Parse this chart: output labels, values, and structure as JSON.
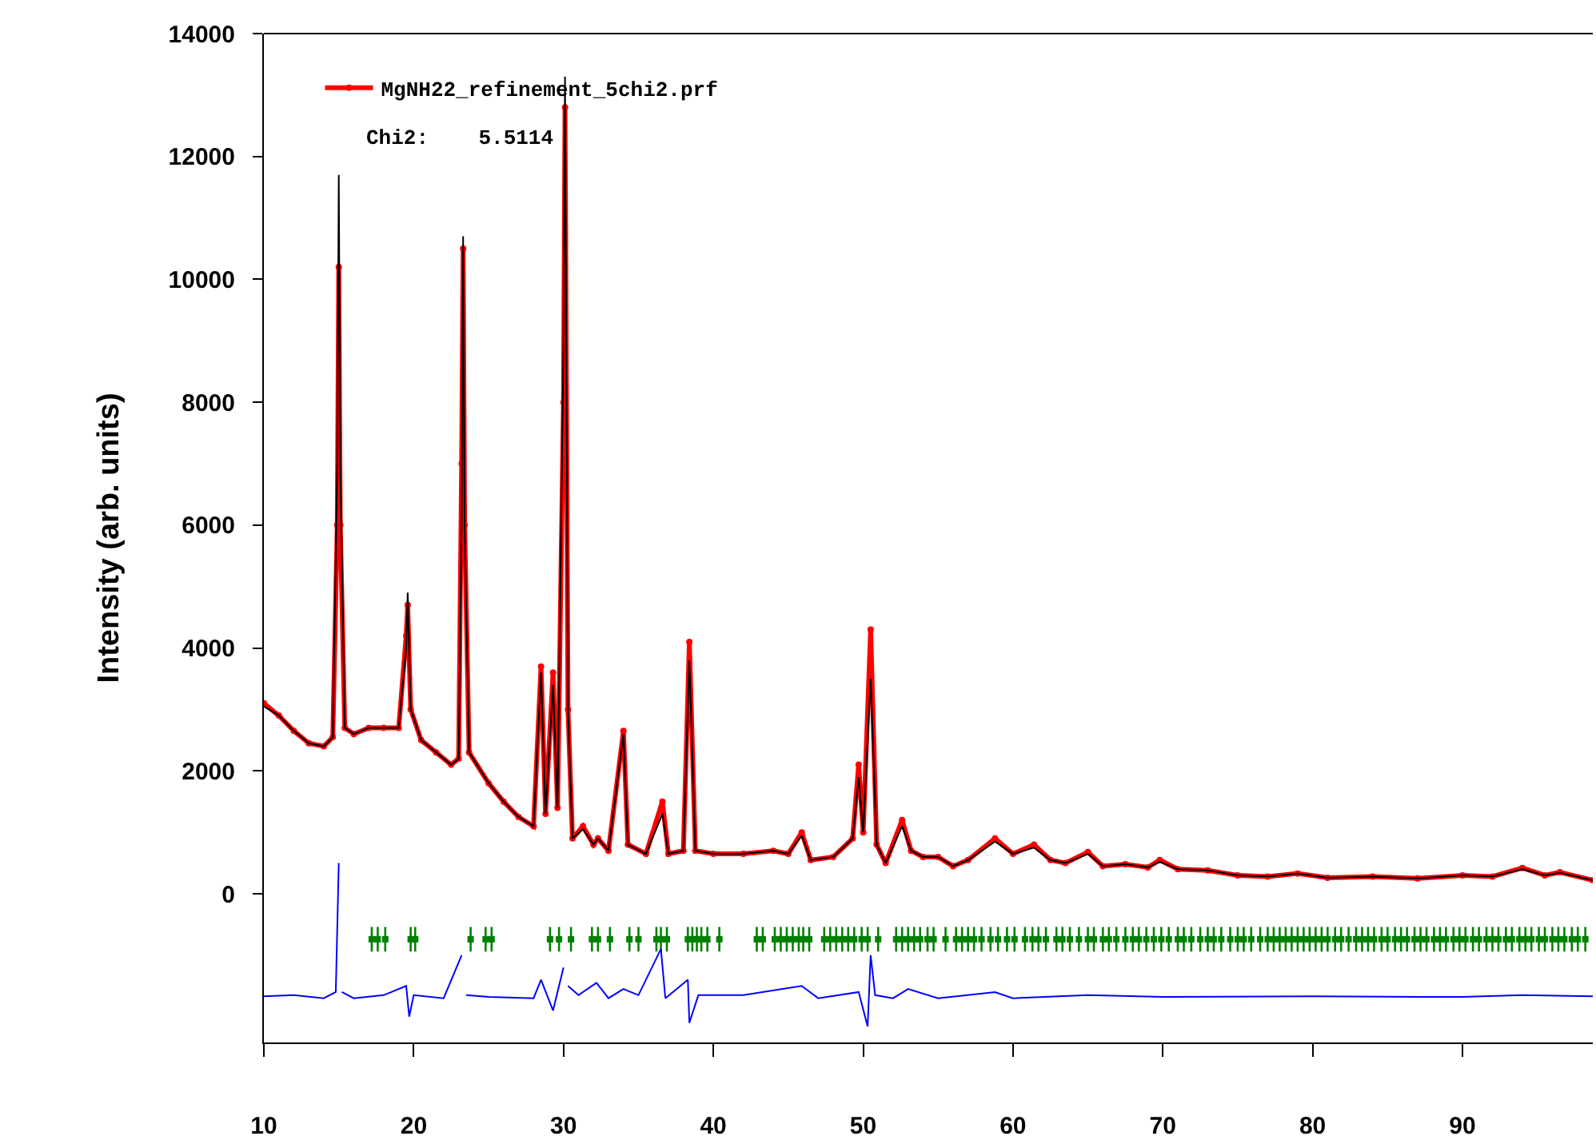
{
  "chart_data": {
    "type": "line",
    "ylabel": "Intensity (arb. units)",
    "xlim": [
      10,
      98.7
    ],
    "xticks": [
      10,
      20,
      30,
      40,
      50,
      60,
      70,
      80,
      90
    ],
    "ylim": [
      -2420,
      14000
    ],
    "yticks": [
      0,
      2000,
      4000,
      6000,
      8000,
      10000,
      12000,
      14000
    ],
    "grid": false,
    "legend": "top left",
    "annotations": [
      "Chi2:    5.5114"
    ],
    "series": [
      {
        "name": "MgNH22_refinement_5chi2.prf",
        "type": "line",
        "color": "#ff0000",
        "marker": "circle",
        "line_style": "solid",
        "x": [
          10,
          11,
          12,
          13,
          14,
          14.6,
          14.9,
          15,
          15.1,
          15.4,
          16,
          17,
          18,
          19,
          19.5,
          19.6,
          19.8,
          20.5,
          21.5,
          22.5,
          23,
          23.2,
          23.3,
          23.4,
          23.7,
          25,
          26,
          27,
          28,
          28.5,
          28.8,
          29.3,
          29.6,
          30,
          30.1,
          30.3,
          30.6,
          31.3,
          32,
          32.3,
          33,
          34,
          34.3,
          35.5,
          36.6,
          37,
          38,
          38.4,
          38.8,
          40,
          42,
          44,
          45,
          45.9,
          46.5,
          48,
          49.3,
          49.7,
          50,
          50.5,
          50.9,
          51.5,
          52.6,
          53.2,
          54,
          55,
          56,
          57,
          58.8,
          60,
          61.4,
          62.5,
          63.5,
          65,
          66,
          67.5,
          69,
          69.8,
          71,
          73,
          75,
          77,
          79,
          81,
          84,
          87,
          90,
          92,
          94,
          95.5,
          96.5,
          98.7
        ],
        "values": [
          3100,
          2900,
          2650,
          2450,
          2400,
          2550,
          6000,
          10200,
          6000,
          2700,
          2600,
          2700,
          2700,
          2700,
          4200,
          4700,
          3000,
          2500,
          2300,
          2100,
          2200,
          7000,
          10500,
          6000,
          2300,
          1800,
          1500,
          1250,
          1100,
          3700,
          1300,
          3600,
          1400,
          8000,
          12800,
          3000,
          900,
          1100,
          800,
          900,
          700,
          2650,
          800,
          650,
          1500,
          650,
          700,
          4100,
          700,
          650,
          650,
          700,
          650,
          1000,
          550,
          600,
          900,
          2100,
          1000,
          4300,
          800,
          500,
          1200,
          700,
          600,
          600,
          450,
          550,
          900,
          650,
          800,
          550,
          500,
          680,
          450,
          480,
          430,
          550,
          400,
          380,
          300,
          280,
          330,
          260,
          280,
          250,
          300,
          280,
          420,
          300,
          350,
          220
        ]
      },
      {
        "type": "line",
        "color": "#000000",
        "marker": "none",
        "line_style": "solid",
        "x": [
          10,
          11,
          12,
          13,
          14,
          14.6,
          14.9,
          15,
          15.1,
          15.4,
          16,
          17,
          18,
          19,
          19.5,
          19.6,
          19.8,
          20.5,
          21.5,
          22.5,
          23,
          23.2,
          23.3,
          23.4,
          23.7,
          25,
          26,
          27,
          28,
          28.5,
          28.8,
          29.3,
          29.6,
          30,
          30.1,
          30.3,
          30.6,
          31.3,
          32,
          32.3,
          33,
          34,
          34.3,
          35.5,
          36.6,
          37,
          38,
          38.4,
          38.8,
          40,
          42,
          44,
          45,
          45.9,
          46.5,
          48,
          49.3,
          49.7,
          50,
          50.5,
          50.9,
          51.5,
          52.6,
          53.2,
          54,
          55,
          56,
          57,
          58.8,
          60,
          61.4,
          62.5,
          63.5,
          65,
          66,
          67.5,
          69,
          69.8,
          71,
          73,
          75,
          77,
          79,
          81,
          84,
          87,
          90,
          92,
          94,
          95.5,
          96.5,
          98.7
        ],
        "values": [
          3050,
          2900,
          2650,
          2450,
          2400,
          2550,
          7000,
          11700,
          7000,
          2700,
          2600,
          2700,
          2700,
          2700,
          4000,
          4900,
          3000,
          2500,
          2300,
          2100,
          2200,
          6000,
          10700,
          6000,
          2300,
          1800,
          1500,
          1250,
          1100,
          3600,
          1300,
          3400,
          1400,
          9000,
          13300,
          3000,
          900,
          1050,
          800,
          900,
          700,
          2600,
          800,
          650,
          1300,
          650,
          700,
          3800,
          700,
          650,
          650,
          700,
          650,
          950,
          550,
          600,
          900,
          1900,
          1000,
          3500,
          800,
          500,
          1100,
          700,
          600,
          600,
          450,
          550,
          850,
          650,
          750,
          550,
          500,
          650,
          450,
          480,
          430,
          520,
          400,
          380,
          300,
          280,
          330,
          260,
          280,
          250,
          300,
          280,
          400,
          300,
          340,
          220
        ]
      },
      {
        "type": "scatter",
        "color": "#008000",
        "marker": "square",
        "x": [
          17.2,
          17.6,
          18.1,
          19.8,
          20.1,
          23.8,
          24.8,
          25.2,
          29.1,
          29.7,
          30.5,
          31.9,
          32.3,
          33.1,
          34.4,
          35,
          36.2,
          36.5,
          36.9,
          38.3,
          38.6,
          38.9,
          39.2,
          39.6,
          40.4,
          42.9,
          43.3,
          44.1,
          44.5,
          44.9,
          45.3,
          45.7,
          46,
          46.4,
          47.4,
          47.8,
          48.2,
          48.6,
          49,
          49.4,
          49.9,
          50.3,
          51,
          52.2,
          52.6,
          53,
          53.4,
          53.8,
          54.3,
          54.7,
          55.5,
          56.2,
          56.6,
          57,
          57.4,
          57.9,
          58.5,
          59,
          59.6,
          60.1,
          60.8,
          61.3,
          61.7,
          62.2,
          62.9,
          63.3,
          63.8,
          64.4,
          65,
          65.4,
          66,
          66.4,
          66.9,
          67.5,
          68,
          68.4,
          68.9,
          69.4,
          69.9,
          70.4,
          71,
          71.4,
          71.9,
          72.5,
          73,
          73.4,
          73.9,
          74.5,
          75,
          75.4,
          75.9,
          76.5,
          77,
          77.4,
          77.8,
          78.2,
          78.6,
          79,
          79.4,
          79.8,
          80.2,
          80.6,
          81,
          81.5,
          81.9,
          82.4,
          82.9,
          83.3,
          83.7,
          84.1,
          84.6,
          85,
          85.5,
          85.9,
          86.3,
          86.8,
          87.2,
          87.6,
          88.1,
          88.5,
          88.9,
          89.4,
          89.8,
          90.2,
          90.7,
          91.1,
          91.6,
          92,
          92.4,
          92.9,
          93.3,
          93.8,
          94.2,
          94.6,
          95.1,
          95.5,
          96,
          96.4,
          96.8,
          97.3,
          97.7,
          98.2
        ],
        "values": [
          -740,
          -740,
          -740,
          -740,
          -740,
          -740,
          -740,
          -740,
          -740,
          -740,
          -740,
          -740,
          -740,
          -740,
          -740,
          -740,
          -740,
          -740,
          -740,
          -740,
          -740,
          -740,
          -740,
          -740,
          -740,
          -740,
          -740,
          -740,
          -740,
          -740,
          -740,
          -740,
          -740,
          -740,
          -740,
          -740,
          -740,
          -740,
          -740,
          -740,
          -740,
          -740,
          -740,
          -740,
          -740,
          -740,
          -740,
          -740,
          -740,
          -740,
          -740,
          -740,
          -740,
          -740,
          -740,
          -740,
          -740,
          -740,
          -740,
          -740,
          -740,
          -740,
          -740,
          -740,
          -740,
          -740,
          -740,
          -740,
          -740,
          -740,
          -740,
          -740,
          -740,
          -740,
          -740,
          -740,
          -740,
          -740,
          -740,
          -740,
          -740,
          -740,
          -740,
          -740,
          -740,
          -740,
          -740,
          -740,
          -740,
          -740,
          -740,
          -740,
          -740,
          -740,
          -740,
          -740,
          -740,
          -740,
          -740,
          -740,
          -740,
          -740,
          -740,
          -740,
          -740,
          -740,
          -740,
          -740,
          -740,
          -740,
          -740,
          -740,
          -740,
          -740,
          -740,
          -740,
          -740,
          -740,
          -740,
          -740,
          -740,
          -740,
          -740,
          -740,
          -740,
          -740,
          -740,
          -740,
          -740,
          -740,
          -740,
          -740,
          -740,
          -740,
          -740,
          -740,
          -740,
          -740,
          -740,
          -740,
          -740,
          -740
        ],
        "errors": [
          200,
          200,
          200,
          200,
          200,
          200,
          200,
          200,
          200,
          200,
          200,
          200,
          200,
          200,
          200,
          200,
          200,
          200,
          200,
          200,
          200,
          200,
          200,
          200,
          200,
          200,
          200,
          200,
          200,
          200,
          200,
          200,
          200,
          200,
          200,
          200,
          200,
          200,
          200,
          200,
          200,
          200,
          200,
          200,
          200,
          200,
          200,
          200,
          200,
          200,
          200,
          200,
          200,
          200,
          200,
          200,
          200,
          200,
          200,
          200,
          200,
          200,
          200,
          200,
          200,
          200,
          200,
          200,
          200,
          200,
          200,
          200,
          200,
          200,
          200,
          200,
          200,
          200,
          200,
          200,
          200,
          200,
          200,
          200,
          200,
          200,
          200,
          200,
          200,
          200,
          200,
          200,
          200,
          200,
          200,
          200,
          200,
          200,
          200,
          200,
          200,
          200,
          200,
          200,
          200,
          200,
          200,
          200,
          200,
          200,
          200,
          200,
          200,
          200,
          200,
          200,
          200,
          200,
          200,
          200,
          200,
          200,
          200,
          200,
          200,
          200,
          200,
          200,
          200,
          200,
          200,
          200,
          200,
          200,
          200,
          200,
          200,
          200,
          200,
          200,
          200,
          200
        ]
      },
      {
        "type": "line",
        "color": "#0000ff",
        "marker": "none",
        "line_style": "solid",
        "x": [
          10,
          12,
          14,
          14.8,
          15,
          15.05,
          15.2,
          16,
          18,
          19.5,
          19.7,
          20,
          22,
          23.2,
          23.3,
          23.5,
          25,
          28,
          28.5,
          29.3,
          30,
          30.1,
          30.3,
          31,
          32.2,
          33,
          34,
          35,
          36.5,
          36.8,
          38.3,
          38.4,
          39,
          42,
          45.9,
          47,
          49.7,
          50.3,
          50.5,
          50.8,
          52,
          53,
          55,
          58.8,
          60,
          65,
          70,
          80,
          90,
          94,
          98.7
        ],
        "values": [
          -1670,
          -1650,
          -1700,
          -1600,
          500,
          null,
          -1600,
          -1700,
          -1650,
          -1500,
          -2000,
          -1650,
          -1700,
          -1000,
          null,
          -1650,
          -1680,
          -1700,
          -1400,
          -1900,
          -1200,
          null,
          -1500,
          -1650,
          -1450,
          -1700,
          -1550,
          -1650,
          -900,
          -1700,
          -1400,
          -2100,
          -1650,
          -1650,
          -1500,
          -1700,
          -1600,
          -2160,
          -1000,
          -1650,
          -1700,
          -1550,
          -1700,
          -1600,
          -1700,
          -1650,
          -1680,
          -1670,
          -1680,
          -1650,
          -1670
        ]
      }
    ]
  }
}
